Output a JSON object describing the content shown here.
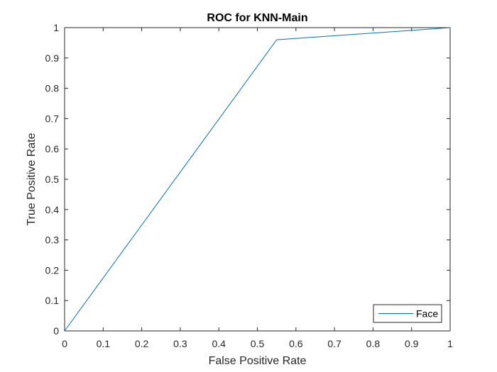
{
  "chart_data": {
    "type": "line",
    "title": "ROC for KNN-Main",
    "xlabel": "False Positive Rate",
    "ylabel": "True Positive Rate",
    "xlim": [
      0,
      1
    ],
    "ylim": [
      0,
      1
    ],
    "xticks": [
      0,
      0.1,
      0.2,
      0.3,
      0.4,
      0.5,
      0.6,
      0.7,
      0.8,
      0.9,
      1
    ],
    "yticks": [
      0,
      0.1,
      0.2,
      0.3,
      0.4,
      0.5,
      0.6,
      0.7,
      0.8,
      0.9,
      1
    ],
    "xtick_labels": [
      "0",
      "0.1",
      "0.2",
      "0.3",
      "0.4",
      "0.5",
      "0.6",
      "0.7",
      "0.8",
      "0.9",
      "1"
    ],
    "ytick_labels": [
      "0",
      "0.1",
      "0.2",
      "0.3",
      "0.4",
      "0.5",
      "0.6",
      "0.7",
      "0.8",
      "0.9",
      "1"
    ],
    "grid": false,
    "legend_position": "bottom-right",
    "series": [
      {
        "name": "Face",
        "color": "#0072BD",
        "x": [
          0,
          0.55,
          1
        ],
        "y": [
          0,
          0.96,
          1
        ]
      }
    ]
  }
}
